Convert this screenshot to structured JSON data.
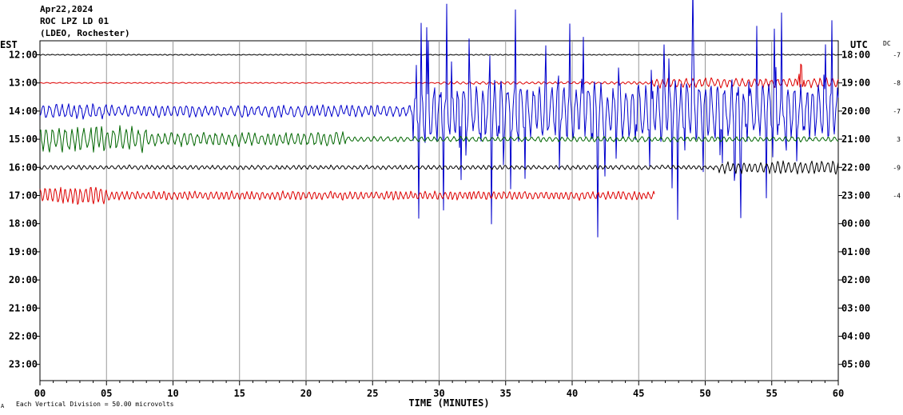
{
  "header": {
    "date": "Apr22,2024",
    "station": "ROC LPZ LD 01",
    "network": "(LDEO, Rochester)"
  },
  "axis": {
    "left_label": "EST",
    "right_label": "UTC",
    "dc_label": "DC",
    "xlabel": "TIME (MINUTES)",
    "footer_mark": "A",
    "footer_note": "Each Vertical Division =   50.00 microvolts",
    "x_ticks": [
      "00",
      "05",
      "10",
      "15",
      "20",
      "25",
      "30",
      "35",
      "40",
      "45",
      "50",
      "55",
      "60"
    ],
    "est_hours": [
      "12:00",
      "13:00",
      "14:00",
      "15:00",
      "16:00",
      "17:00",
      "18:00",
      "19:00",
      "20:00",
      "21:00",
      "22:00",
      "23:00"
    ],
    "utc_hours": [
      "18:00",
      "19:00",
      "20:00",
      "21:00",
      "22:00",
      "23:00",
      "00:00",
      "01:00",
      "02:00",
      "03:00",
      "04:00",
      "05:00"
    ],
    "dc_values": [
      "-7",
      "-8",
      "-7",
      "3",
      "-9",
      "-4"
    ]
  },
  "colors": {
    "black": "#000000",
    "red": "#dd0000",
    "blue": "#0000cc",
    "green": "#006600",
    "grid": "#999999"
  },
  "chart_data": {
    "type": "line",
    "title": "",
    "xlabel": "TIME (MINUTES)",
    "xlim": [
      0,
      60
    ],
    "ylim": [
      "12:00",
      "23:00"
    ],
    "grid": true,
    "series": [
      {
        "row": "12:00",
        "color": "black",
        "end_min": 60,
        "segments": [
          [
            0,
            60,
            0.6
          ]
        ]
      },
      {
        "row": "13:00",
        "color": "red",
        "end_min": 60,
        "segments": [
          [
            0,
            30,
            0.6
          ],
          [
            30,
            46,
            1.5
          ],
          [
            46,
            60,
            5.5
          ]
        ],
        "spike_min": 57.2
      },
      {
        "row": "14:00",
        "color": "blue",
        "end_min": 60,
        "segments": [
          [
            0,
            5,
            9
          ],
          [
            5,
            28,
            7
          ],
          [
            28,
            60,
            34
          ]
        ]
      },
      {
        "row": "15:00",
        "color": "green",
        "end_min": 60,
        "segments": [
          [
            0,
            8,
            14
          ],
          [
            8,
            23,
            8
          ],
          [
            23,
            60,
            3
          ]
        ]
      },
      {
        "row": "16:00",
        "color": "black",
        "end_min": 60,
        "segments": [
          [
            0,
            51,
            2.5
          ],
          [
            51,
            60,
            7
          ]
        ]
      },
      {
        "row": "17:00",
        "color": "red",
        "end_min": 46.2,
        "segments": [
          [
            0,
            5,
            11
          ],
          [
            5,
            46.2,
            5
          ]
        ]
      }
    ]
  }
}
